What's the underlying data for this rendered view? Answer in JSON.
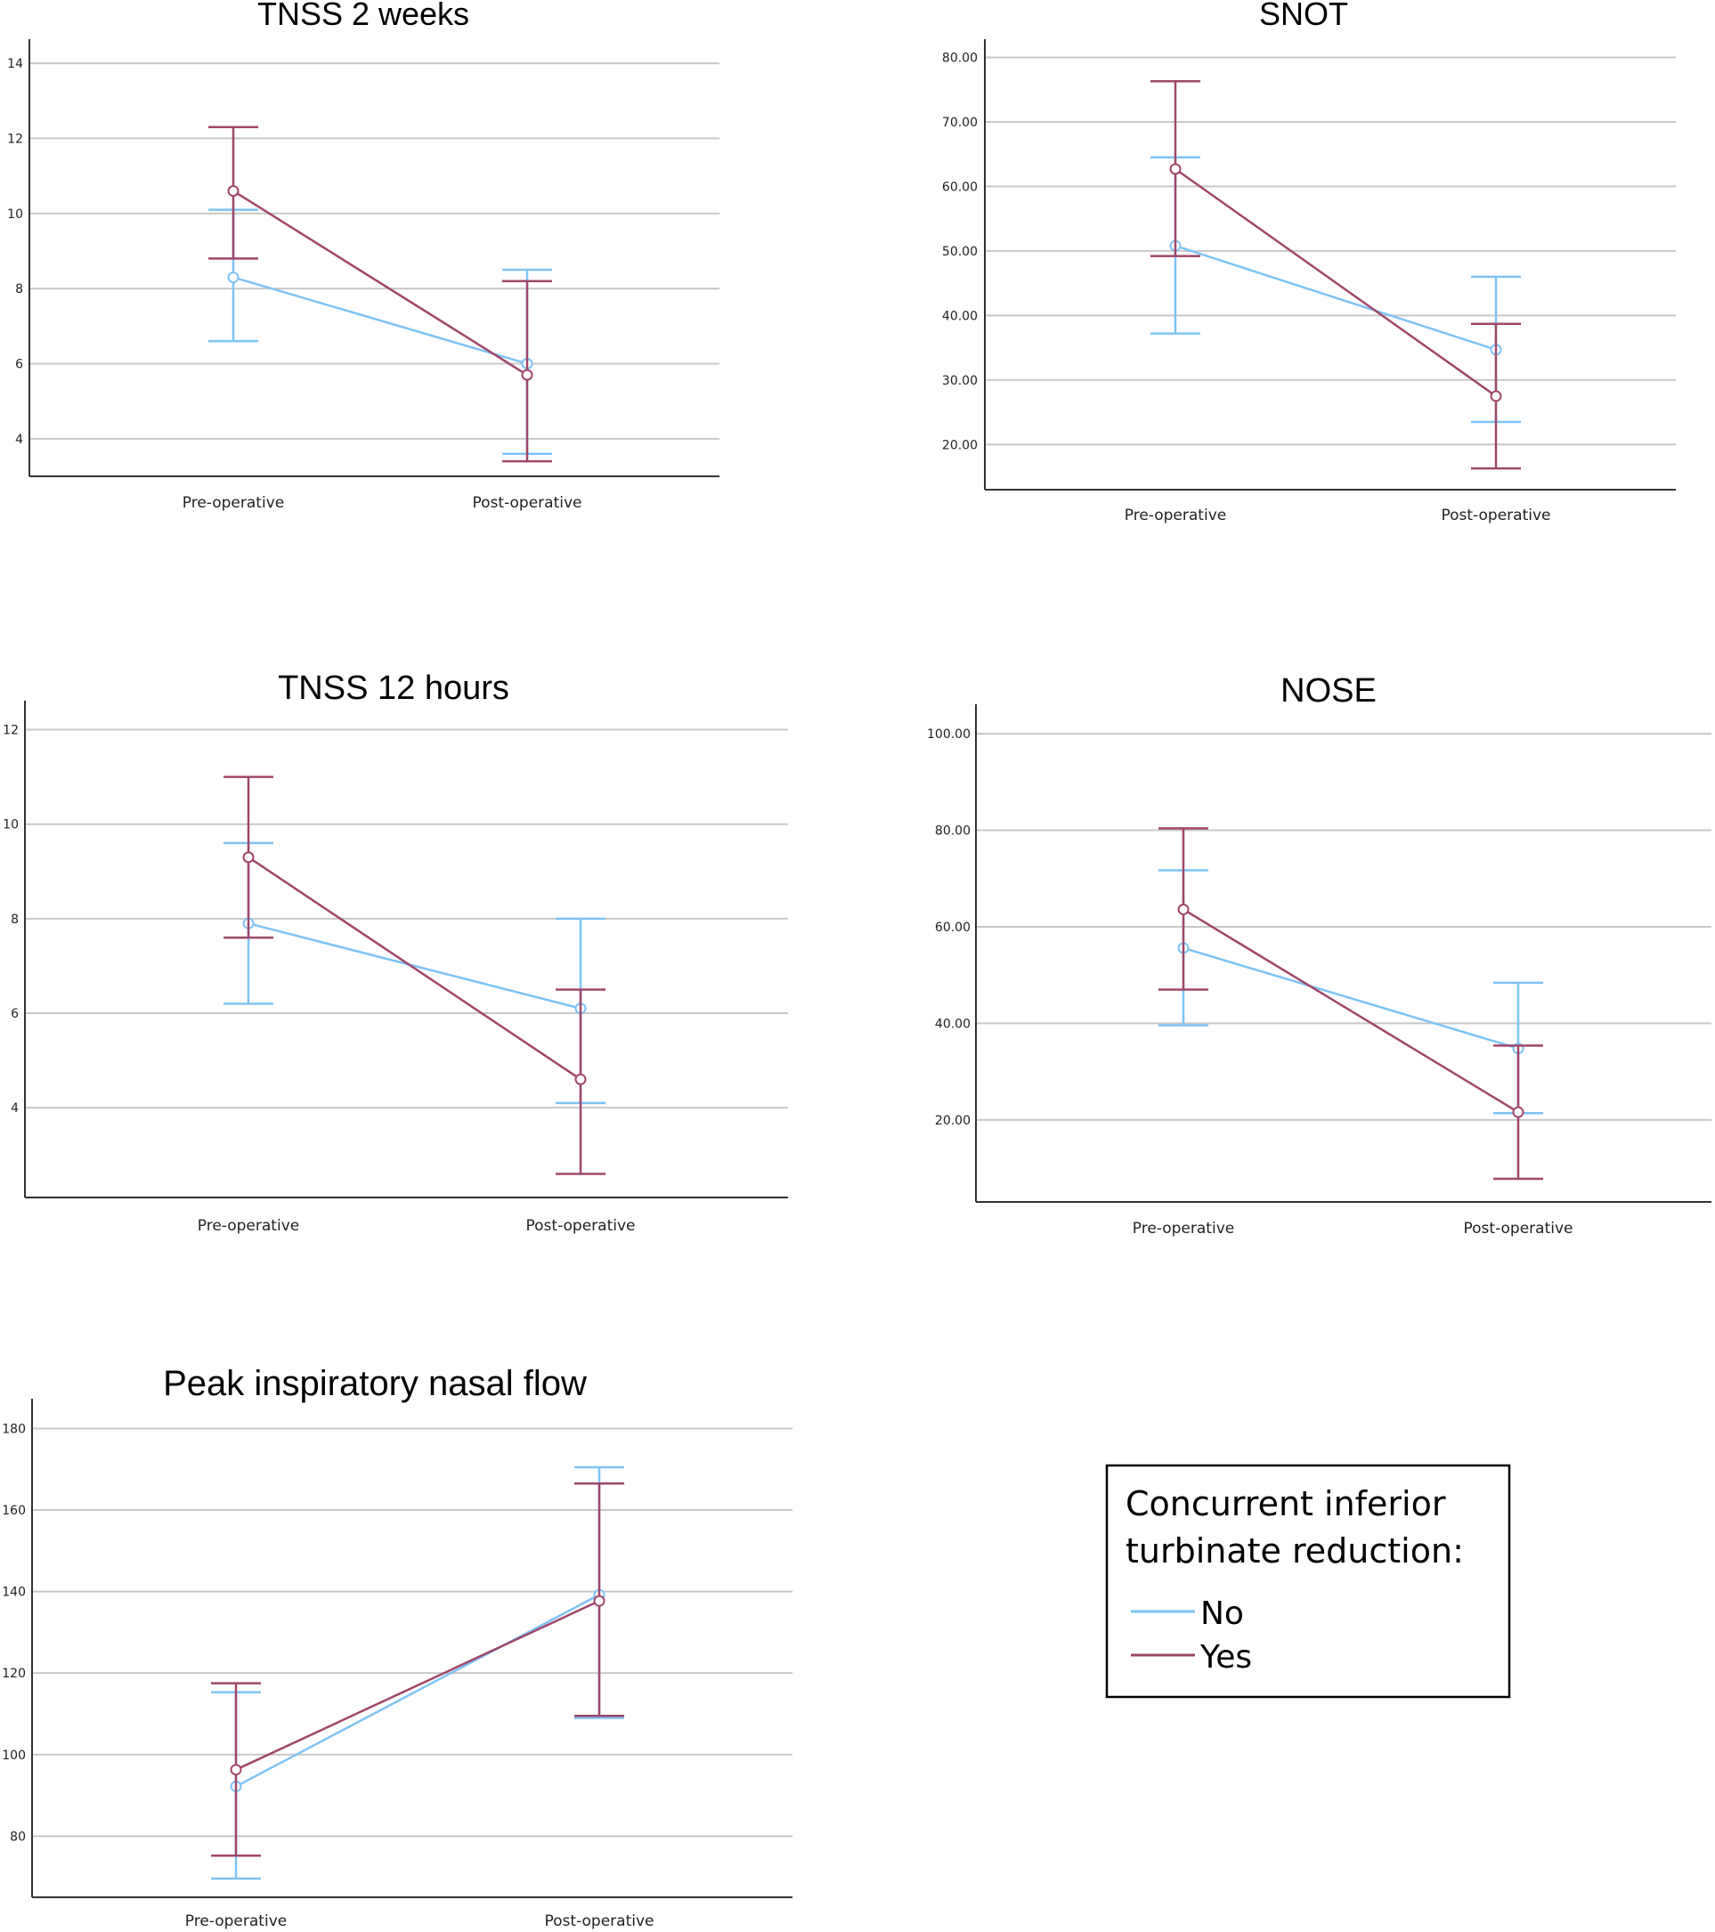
{
  "colors": {
    "no": "#7ec3f5",
    "yes": "#a0466a",
    "grid": "#c8c8c8",
    "axis": "#333333"
  },
  "legend": {
    "title_line1": "Concurrent inferior",
    "title_line2": "turbinate reduction:",
    "items": [
      {
        "label": "No",
        "color": "#7ec3f5"
      },
      {
        "label": "Yes",
        "color": "#a0466a"
      }
    ]
  },
  "chart_data": [
    {
      "type": "line",
      "title": "TNSS 2 weeks",
      "categories": [
        "Pre-operative",
        "Post-operative"
      ],
      "ylim": [
        3,
        14.5
      ],
      "yticks": [
        4,
        6,
        8,
        10,
        12,
        14
      ],
      "ytick_labels": [
        "4",
        "6",
        "8",
        "10",
        "12",
        "14"
      ],
      "grid": true,
      "series": [
        {
          "name": "No",
          "values": [
            8.3,
            6.0
          ],
          "lower": [
            6.6,
            3.6
          ],
          "upper": [
            10.1,
            8.5
          ]
        },
        {
          "name": "Yes",
          "values": [
            10.6,
            5.7
          ],
          "lower": [
            8.8,
            3.4
          ],
          "upper": [
            12.3,
            8.2
          ]
        }
      ]
    },
    {
      "type": "line",
      "title": "SNOT",
      "categories": [
        "Pre-operative",
        "Post-operative"
      ],
      "ylim": [
        13,
        82
      ],
      "yticks": [
        20,
        30,
        40,
        50,
        60,
        70,
        80
      ],
      "ytick_labels": [
        "20.00",
        "30.00",
        "40.00",
        "50.00",
        "60.00",
        "70.00",
        "80.00"
      ],
      "grid": true,
      "series": [
        {
          "name": "No",
          "values": [
            50.8,
            34.7
          ],
          "lower": [
            37.2,
            23.5
          ],
          "upper": [
            64.5,
            46.0
          ]
        },
        {
          "name": "Yes",
          "values": [
            62.7,
            27.5
          ],
          "lower": [
            49.2,
            16.3
          ],
          "upper": [
            76.3,
            38.7
          ]
        }
      ]
    },
    {
      "type": "line",
      "title": "TNSS 12 hours",
      "categories": [
        "Pre-operative",
        "Post-operative"
      ],
      "ylim": [
        2.1,
        12.5
      ],
      "yticks": [
        4,
        6,
        8,
        10,
        12
      ],
      "ytick_labels": [
        "4",
        "6",
        "8",
        "10",
        "12"
      ],
      "grid": true,
      "series": [
        {
          "name": "No",
          "values": [
            7.9,
            6.1
          ],
          "lower": [
            6.2,
            4.1
          ],
          "upper": [
            9.6,
            8.0
          ]
        },
        {
          "name": "Yes",
          "values": [
            9.3,
            4.6
          ],
          "lower": [
            7.6,
            2.6
          ],
          "upper": [
            11.0,
            6.5
          ]
        }
      ]
    },
    {
      "type": "line",
      "title": "NOSE",
      "categories": [
        "Pre-operative",
        "Post-operative"
      ],
      "ylim": [
        3,
        105
      ],
      "yticks": [
        20,
        40,
        60,
        80,
        100
      ],
      "ytick_labels": [
        "20.00",
        "40.00",
        "60.00",
        "80.00",
        "100.00"
      ],
      "grid": true,
      "series": [
        {
          "name": "No",
          "values": [
            55.6,
            34.8
          ],
          "lower": [
            39.6,
            21.4
          ],
          "upper": [
            71.7,
            48.4
          ]
        },
        {
          "name": "Yes",
          "values": [
            63.6,
            21.6
          ],
          "lower": [
            47.0,
            7.8
          ],
          "upper": [
            80.4,
            35.4
          ]
        }
      ]
    },
    {
      "type": "line",
      "title": "Peak inspiratory nasal flow",
      "categories": [
        "Pre-operative",
        "Post-operative"
      ],
      "ylim": [
        65,
        186
      ],
      "yticks": [
        80,
        100,
        120,
        140,
        160,
        180
      ],
      "ytick_labels": [
        "80",
        "100",
        "120",
        "140",
        "160",
        "180"
      ],
      "grid": true,
      "series": [
        {
          "name": "No",
          "values": [
            92.2,
            139.2
          ],
          "lower": [
            69.6,
            109.0
          ],
          "upper": [
            115.3,
            170.5
          ]
        },
        {
          "name": "Yes",
          "values": [
            96.3,
            137.7
          ],
          "lower": [
            75.2,
            109.5
          ],
          "upper": [
            117.5,
            166.5
          ]
        }
      ]
    }
  ]
}
